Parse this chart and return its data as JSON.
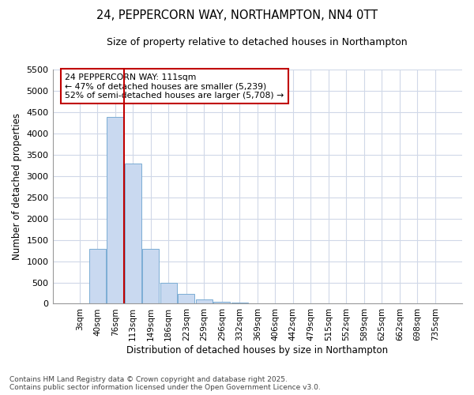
{
  "title_line1": "24, PEPPERCORN WAY, NORTHAMPTON, NN4 0TT",
  "title_line2": "Size of property relative to detached houses in Northampton",
  "xlabel": "Distribution of detached houses by size in Northampton",
  "ylabel": "Number of detached properties",
  "categories": [
    "3sqm",
    "40sqm",
    "76sqm",
    "113sqm",
    "149sqm",
    "186sqm",
    "223sqm",
    "259sqm",
    "296sqm",
    "332sqm",
    "369sqm",
    "406sqm",
    "442sqm",
    "479sqm",
    "515sqm",
    "552sqm",
    "589sqm",
    "625sqm",
    "662sqm",
    "698sqm",
    "735sqm"
  ],
  "values": [
    0,
    1280,
    4380,
    3300,
    1280,
    500,
    230,
    100,
    50,
    20,
    5,
    0,
    0,
    0,
    0,
    0,
    0,
    0,
    0,
    0,
    0
  ],
  "bar_color": "#c9d9f0",
  "bar_edge_color": "#7badd4",
  "vline_color": "#c00000",
  "vline_x_index": 2.5,
  "annotation_text_line1": "24 PEPPERCORN WAY: 111sqm",
  "annotation_text_line2": "← 47% of detached houses are smaller (5,239)",
  "annotation_text_line3": "52% of semi-detached houses are larger (5,708) →",
  "annotation_box_color": "#c00000",
  "ylim": [
    0,
    5500
  ],
  "yticks": [
    0,
    500,
    1000,
    1500,
    2000,
    2500,
    3000,
    3500,
    4000,
    4500,
    5000,
    5500
  ],
  "footer_line1": "Contains HM Land Registry data © Crown copyright and database right 2025.",
  "footer_line2": "Contains public sector information licensed under the Open Government Licence v3.0.",
  "bg_color": "#ffffff",
  "plot_bg_color": "#ffffff",
  "grid_color": "#d0d8e8"
}
